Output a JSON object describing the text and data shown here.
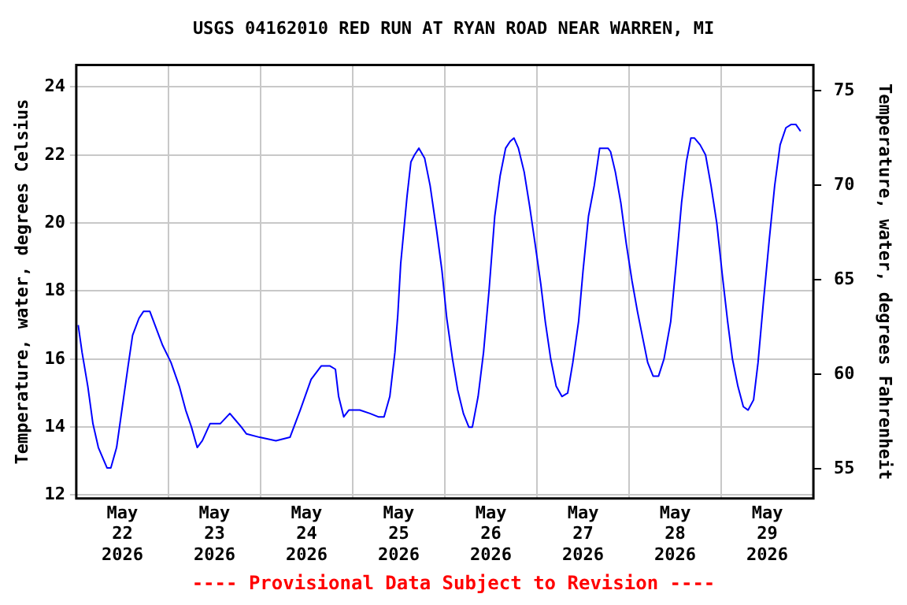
{
  "chart_data": {
    "type": "line",
    "title": "USGS 04162010 RED RUN AT RYAN ROAD NEAR WARREN, MI",
    "ylabel": "Temperature, water, degrees Celsius",
    "y2label": "Temperature, water, degrees Fahrenheit",
    "annotations": [
      "---- Provisional Data Subject to Revision ----"
    ],
    "x": [
      "2026-05-22T00:30",
      "2026-05-22T01:30",
      "2026-05-22T03:00",
      "2026-05-22T04:20",
      "2026-05-22T05:45",
      "2026-05-22T08:00",
      "2026-05-22T09:00",
      "2026-05-22T10:30",
      "2026-05-22T12:00",
      "2026-05-22T13:30",
      "2026-05-22T14:40",
      "2026-05-22T16:20",
      "2026-05-22T17:30",
      "2026-05-22T19:10",
      "2026-05-22T21:10",
      "2026-05-22T22:30",
      "2026-05-23T00:40",
      "2026-05-23T02:50",
      "2026-05-23T04:30",
      "2026-05-23T06:00",
      "2026-05-23T07:30",
      "2026-05-23T08:50",
      "2026-05-23T10:50",
      "2026-05-23T13:30",
      "2026-05-23T16:00",
      "2026-05-23T17:30",
      "2026-05-23T19:00",
      "2026-05-23T20:20",
      "2026-05-23T23:45",
      "2026-05-24T04:00",
      "2026-05-24T07:40",
      "2026-05-24T10:20",
      "2026-05-24T13:10",
      "2026-05-24T15:50",
      "2026-05-24T18:00",
      "2026-05-24T19:30",
      "2026-05-24T20:20",
      "2026-05-24T21:40",
      "2026-05-24T23:00",
      "2026-05-25T01:50",
      "2026-05-25T04:30",
      "2026-05-25T06:40",
      "2026-05-25T08:10",
      "2026-05-25T09:40",
      "2026-05-25T11:00",
      "2026-05-25T11:45",
      "2026-05-25T12:30",
      "2026-05-25T13:30",
      "2026-05-25T14:10",
      "2026-05-25T15:10",
      "2026-05-25T16:05",
      "2026-05-25T17:15",
      "2026-05-25T18:45",
      "2026-05-25T20:10",
      "2026-05-25T21:50",
      "2026-05-25T23:15",
      "2026-05-26T00:30",
      "2026-05-26T02:00",
      "2026-05-26T03:20",
      "2026-05-26T04:50",
      "2026-05-26T06:15",
      "2026-05-26T07:10",
      "2026-05-26T08:40",
      "2026-05-26T10:05",
      "2026-05-26T11:30",
      "2026-05-26T13:00",
      "2026-05-26T14:25",
      "2026-05-26T15:50",
      "2026-05-26T17:00",
      "2026-05-26T18:00",
      "2026-05-26T19:10",
      "2026-05-26T20:40",
      "2026-05-26T22:05",
      "2026-05-26T23:30",
      "2026-05-27T01:00",
      "2026-05-27T02:10",
      "2026-05-27T03:35",
      "2026-05-27T05:00",
      "2026-05-27T06:30",
      "2026-05-27T08:00",
      "2026-05-27T09:20",
      "2026-05-27T10:50",
      "2026-05-27T12:00",
      "2026-05-27T13:25",
      "2026-05-27T14:55",
      "2026-05-27T16:20",
      "2026-05-27T18:30",
      "2026-05-27T19:10",
      "2026-05-27T20:25",
      "2026-05-27T21:50",
      "2026-05-27T23:15",
      "2026-05-28T00:45",
      "2026-05-28T02:10",
      "2026-05-28T03:35",
      "2026-05-28T04:50",
      "2026-05-28T06:15",
      "2026-05-28T07:40",
      "2026-05-28T09:05",
      "2026-05-28T10:50",
      "2026-05-28T12:15",
      "2026-05-28T13:40",
      "2026-05-28T14:55",
      "2026-05-28T16:05",
      "2026-05-28T17:00",
      "2026-05-28T18:30",
      "2026-05-28T19:55",
      "2026-05-28T21:20",
      "2026-05-28T22:50",
      "2026-05-29T00:15",
      "2026-05-29T01:40",
      "2026-05-29T02:55",
      "2026-05-29T04:20",
      "2026-05-29T05:45",
      "2026-05-29T07:00",
      "2026-05-29T08:25",
      "2026-05-29T09:35",
      "2026-05-29T11:00",
      "2026-05-29T12:30",
      "2026-05-29T13:55",
      "2026-05-29T15:20",
      "2026-05-29T16:50",
      "2026-05-29T18:15",
      "2026-05-29T19:25",
      "2026-05-29T20:40"
    ],
    "series": [
      {
        "color": "#0000ff",
        "values": [
          17.0,
          16.2,
          15.2,
          14.1,
          13.4,
          12.8,
          12.8,
          13.4,
          14.6,
          15.8,
          16.7,
          17.2,
          17.4,
          17.4,
          16.8,
          16.4,
          15.9,
          15.2,
          14.5,
          14.0,
          13.4,
          13.6,
          14.1,
          14.1,
          14.4,
          14.2,
          14.0,
          13.8,
          13.7,
          13.6,
          13.7,
          14.5,
          15.4,
          15.8,
          15.8,
          15.7,
          14.9,
          14.3,
          14.5,
          14.5,
          14.4,
          14.3,
          14.3,
          14.9,
          16.2,
          17.3,
          18.8,
          20.0,
          20.8,
          21.8,
          22.0,
          22.2,
          21.9,
          21.1,
          19.8,
          18.6,
          17.2,
          16.0,
          15.1,
          14.4,
          14.0,
          14.0,
          14.9,
          16.2,
          18.0,
          20.2,
          21.4,
          22.2,
          22.4,
          22.5,
          22.2,
          21.5,
          20.5,
          19.4,
          18.2,
          17.1,
          16.0,
          15.2,
          14.9,
          15.0,
          15.9,
          17.1,
          18.6,
          20.2,
          21.1,
          22.2,
          22.2,
          22.1,
          21.5,
          20.6,
          19.4,
          18.3,
          17.4,
          16.6,
          15.9,
          15.5,
          15.5,
          16.0,
          17.1,
          18.8,
          20.6,
          21.8,
          22.5,
          22.5,
          22.3,
          22.0,
          21.1,
          20.0,
          18.5,
          17.1,
          16.0,
          15.2,
          14.6,
          14.5,
          14.8,
          15.9,
          17.7,
          19.5,
          21.1,
          22.3,
          22.8,
          22.9,
          22.9,
          22.7
        ]
      }
    ],
    "xlim": [
      "2026-05-22T00:00",
      "2026-05-30T00:00"
    ],
    "xticks": [
      {
        "value": "2026-05-22T00:00",
        "label": null
      },
      {
        "value": "2026-05-22T12:00",
        "label": "May 22 2026"
      },
      {
        "value": "2026-05-23T00:00",
        "label": null
      },
      {
        "value": "2026-05-23T12:00",
        "label": "May 23 2026"
      },
      {
        "value": "2026-05-24T00:00",
        "label": null
      },
      {
        "value": "2026-05-24T12:00",
        "label": "May 24 2026"
      },
      {
        "value": "2026-05-25T00:00",
        "label": null
      },
      {
        "value": "2026-05-25T12:00",
        "label": "May 25 2026"
      },
      {
        "value": "2026-05-26T00:00",
        "label": null
      },
      {
        "value": "2026-05-26T12:00",
        "label": "May 26 2026"
      },
      {
        "value": "2026-05-27T00:00",
        "label": null
      },
      {
        "value": "2026-05-27T12:00",
        "label": "May 27 2026"
      },
      {
        "value": "2026-05-28T00:00",
        "label": null
      },
      {
        "value": "2026-05-28T12:00",
        "label": "May 28 2026"
      },
      {
        "value": "2026-05-29T00:00",
        "label": null
      },
      {
        "value": "2026-05-29T12:00",
        "label": "May 29 2026"
      },
      {
        "value": "2026-05-30T00:00",
        "label": null
      }
    ],
    "ylim": [
      11.9,
      24.65
    ],
    "yticks": [
      12,
      14,
      16,
      18,
      20,
      22,
      24
    ],
    "y2lim": [
      53.42,
      76.37
    ],
    "y2ticks": [
      55,
      60,
      65,
      70,
      75
    ],
    "grid": true,
    "legend": false,
    "marker": "none",
    "line_style": "solid"
  }
}
